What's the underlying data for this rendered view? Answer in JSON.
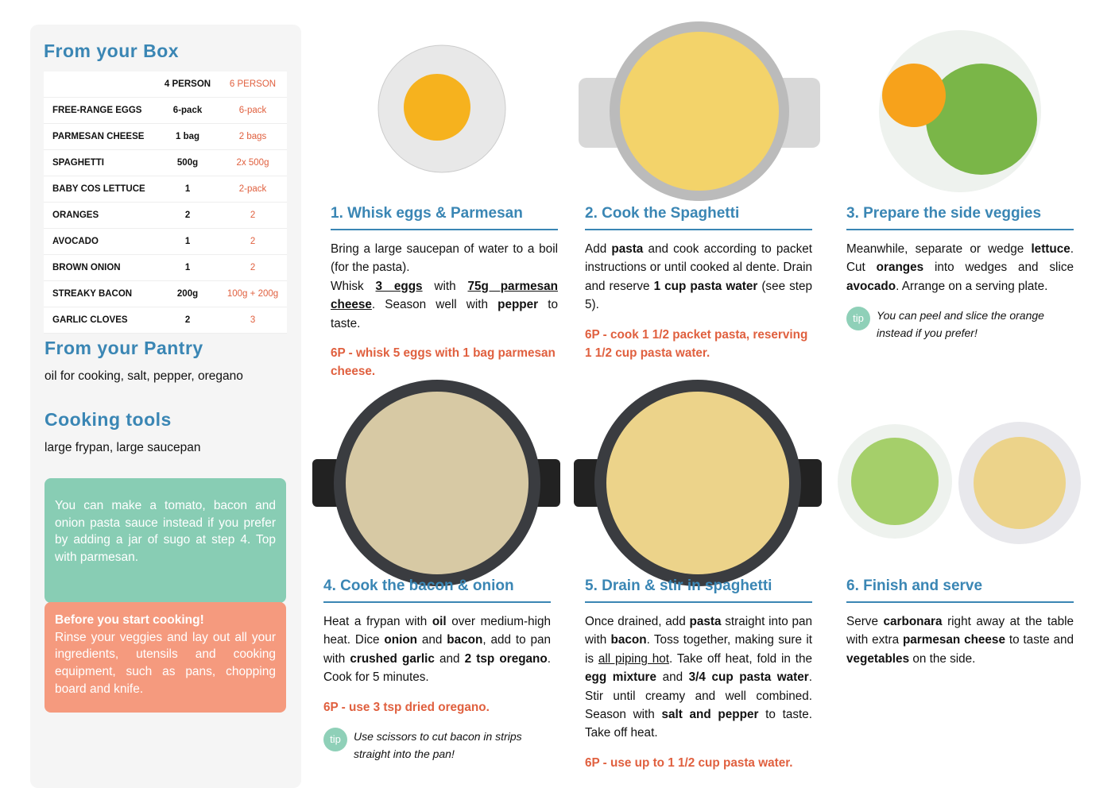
{
  "sidebar": {
    "box_title": "From your Box",
    "table": {
      "columns": [
        "4 PERSON",
        "6 PERSON"
      ],
      "rows": [
        [
          "FREE-RANGE EGGS",
          "6-pack",
          "6-pack"
        ],
        [
          "PARMESAN CHEESE",
          "1 bag",
          "2 bags"
        ],
        [
          "SPAGHETTI",
          "500g",
          "2x 500g"
        ],
        [
          "BABY COS LETTUCE",
          "1",
          "2-pack"
        ],
        [
          "ORANGES",
          "2",
          "2"
        ],
        [
          "AVOCADO",
          "1",
          "2"
        ],
        [
          "BROWN ONION",
          "1",
          "2"
        ],
        [
          "STREAKY BACON",
          "200g",
          "100g + 200g"
        ],
        [
          "GARLIC CLOVES",
          "2",
          "3"
        ]
      ]
    },
    "pantry_title": "From your Pantry",
    "pantry_text": "oil for cooking, salt, pepper, oregano",
    "tools_title": "Cooking tools",
    "tools_text": "large frypan, large saucepan",
    "note": "You can make a tomato, bacon and onion pasta sauce instead if you prefer by adding a jar of sugo at step 4. Top with parmesan.",
    "before_title": "Before you start cooking!",
    "before_text": "Rinse your veggies and lay out all your ingredients, utensils and cooking equipment, such as pans, chopping board and knife."
  },
  "tip_badge": "tip",
  "steps": [
    {
      "title": "1. Whisk eggs & Parmesan",
      "body": [
        [
          "Bring a large saucepan of water to a boil (for the pasta)."
        ],
        [
          "Whisk ",
          {
            "text": "3 eggs",
            "bold": true,
            "underline": true
          },
          " with ",
          {
            "text": "75g parmesan cheese",
            "bold": true,
            "underline": true
          },
          ". Season well with ",
          {
            "text": "pepper",
            "bold": true
          },
          " to taste."
        ]
      ],
      "note": "6P - whisk 5 eggs with 1 bag parmesan cheese."
    },
    {
      "title": "2. Cook the Spaghetti",
      "body": [
        [
          "Add ",
          {
            "text": "pasta",
            "bold": true
          },
          " and cook according to packet instructions or until cooked al dente. Drain and reserve ",
          {
            "text": "1 cup pasta water",
            "bold": true
          },
          " (see step 5)."
        ]
      ],
      "note": "6P - cook 1 1/2 packet pasta, reserving 1 1/2 cup pasta water."
    },
    {
      "title": "3. Prepare the side veggies",
      "body": [
        [
          "Meanwhile, separate or wedge ",
          {
            "text": "lettuce",
            "bold": true
          },
          ". Cut ",
          {
            "text": "oranges",
            "bold": true
          },
          " into wedges and slice ",
          {
            "text": "avocado",
            "bold": true
          },
          ". Arrange on a serving plate."
        ]
      ],
      "tip": "You can peel and slice the orange instead if you prefer!"
    },
    {
      "title": "4. Cook the bacon & onion",
      "body": [
        [
          "Heat a frypan with ",
          {
            "text": "oil",
            "bold": true
          },
          " over medium-high heat. Dice ",
          {
            "text": "onion",
            "bold": true
          },
          " and ",
          {
            "text": "bacon",
            "bold": true
          },
          ", add to pan with ",
          {
            "text": "crushed garlic",
            "bold": true
          },
          " and ",
          {
            "text": "2 tsp oregano",
            "bold": true
          },
          ". Cook for 5 minutes."
        ]
      ],
      "note": "6P - use 3 tsp dried oregano.",
      "tip": "Use scissors to cut bacon in strips straight into the pan!"
    },
    {
      "title": "5. Drain & stir in spaghetti",
      "body": [
        [
          "Once drained, add ",
          {
            "text": "pasta",
            "bold": true
          },
          " straight into pan with ",
          {
            "text": "bacon",
            "bold": true
          },
          ". Toss together, making sure it is ",
          {
            "text": "all piping hot",
            "underline": true
          },
          ". Take off heat, fold in the ",
          {
            "text": "egg mixture",
            "bold": true
          },
          " and ",
          {
            "text": "3/4 cup pasta water",
            "bold": true
          },
          ". Stir until creamy and well combined. Season with ",
          {
            "text": "salt and pepper",
            "bold": true
          },
          " to taste. Take off heat."
        ]
      ],
      "note": "6P - use up to 1 1/2 cup pasta water."
    },
    {
      "title": "6. Finish and serve",
      "body": [
        [
          "Serve ",
          {
            "text": "carbonara",
            "bold": true
          },
          " right away at the table with extra ",
          {
            "text": "parmesan cheese",
            "bold": true
          },
          " to taste and ",
          {
            "text": "vegetables",
            "bold": true
          },
          " on the side."
        ]
      ]
    }
  ]
}
